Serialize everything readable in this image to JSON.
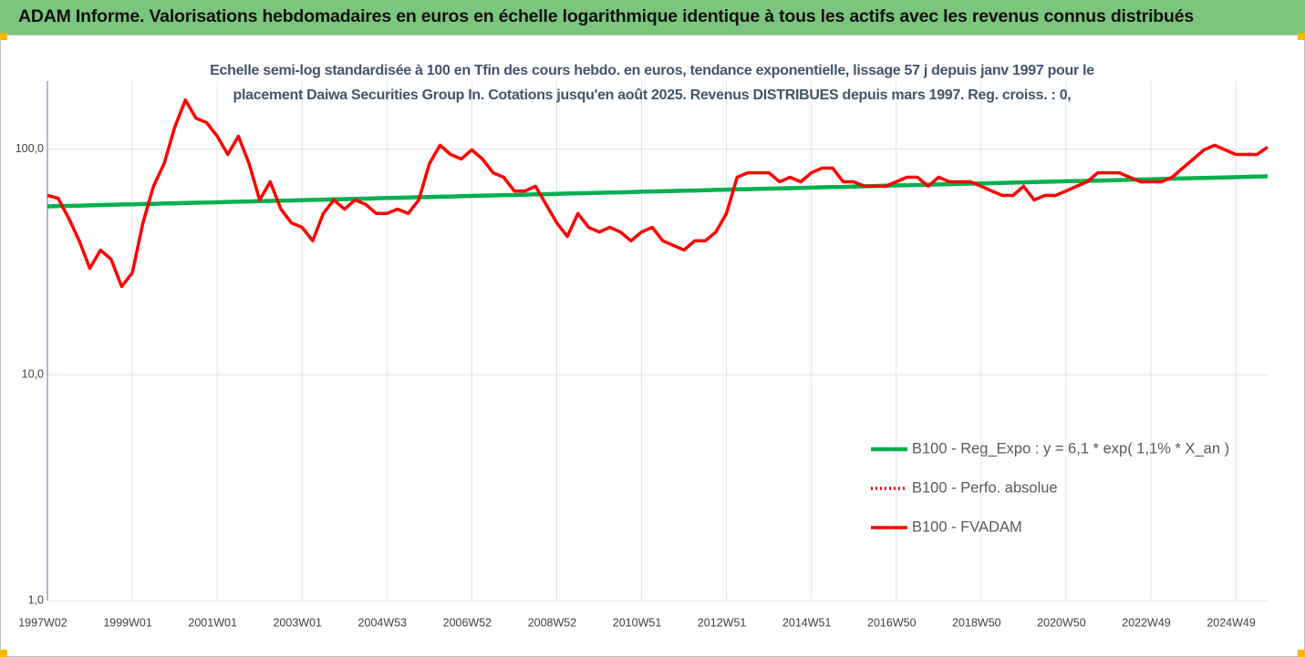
{
  "chart_data": {
    "type": "line",
    "title": "ADAM Informe. Valorisations hebdomadaires en euros en échelle logarithmique identique à tous les actifs avec les revenus connus distribués",
    "subtitle": "Echelle semi-log standardisée à 100 en Tfin des cours hebdo. en euros, tendance exponentielle, lissage 57 j depuis janv 1997 pour le placement Daiwa Securities Group In. Cotations jusqu'en août 2025. Revenus DISTRIBUES depuis mars 1997. Reg. croiss. : 0,",
    "log_scale": true,
    "grid": true,
    "legend": "right",
    "ylim": [
      1,
      200
    ],
    "yticks": [
      {
        "value": 1,
        "label": "1,0"
      },
      {
        "value": 10,
        "label": "10,0"
      },
      {
        "value": 100,
        "label": "100,0"
      }
    ],
    "categories": [
      "1997W02",
      null,
      null,
      null,
      null,
      null,
      null,
      null,
      "1999W01",
      null,
      null,
      null,
      null,
      null,
      null,
      null,
      "2001W01",
      null,
      null,
      null,
      null,
      null,
      null,
      null,
      "2003W01",
      null,
      null,
      null,
      null,
      null,
      null,
      null,
      "2004W53",
      null,
      null,
      null,
      null,
      null,
      null,
      null,
      "2006W52",
      null,
      null,
      null,
      null,
      null,
      null,
      null,
      "2008W52",
      null,
      null,
      null,
      null,
      null,
      null,
      null,
      "2010W51",
      null,
      null,
      null,
      null,
      null,
      null,
      null,
      "2012W51",
      null,
      null,
      null,
      null,
      null,
      null,
      null,
      "2014W51",
      null,
      null,
      null,
      null,
      null,
      null,
      null,
      "2016W50",
      null,
      null,
      null,
      null,
      null,
      null,
      null,
      "2018W50",
      null,
      null,
      null,
      null,
      null,
      null,
      null,
      "2020W50",
      null,
      null,
      null,
      null,
      null,
      null,
      null,
      "2022W49",
      null,
      null,
      null,
      null,
      null,
      null,
      null,
      "2024W49",
      null,
      null,
      null
    ],
    "series": [
      {
        "name": "B100 - Reg_Expo : y = 6,1 * exp( 1,1% *  X_an )",
        "color": "#00b050",
        "dash": "solid",
        "values": [
          55.7,
          55.9,
          56.0,
          56.1,
          56.3,
          56.5,
          56.6,
          56.8,
          56.9,
          57.1,
          57.2,
          57.4,
          57.5,
          57.7,
          57.8,
          58.0,
          58.1,
          58.3,
          58.4,
          58.6,
          58.8,
          58.9,
          59.1,
          59.2,
          59.4,
          59.5,
          59.7,
          59.9,
          60.0,
          60.2,
          60.3,
          60.5,
          60.7,
          60.8,
          61.0,
          61.2,
          61.3,
          61.5,
          61.6,
          61.8,
          62.0,
          62.1,
          62.3,
          62.5,
          62.6,
          62.8,
          63.0,
          63.1,
          63.3,
          63.5,
          63.7,
          63.8,
          64.0,
          64.2,
          64.3,
          64.5,
          64.7,
          64.9,
          65.0,
          65.2,
          65.4,
          65.5,
          65.7,
          65.9,
          66.1,
          66.3,
          66.4,
          66.6,
          66.8,
          67.0,
          67.1,
          67.3,
          67.5,
          67.7,
          67.9,
          68.0,
          68.2,
          68.4,
          68.6,
          68.8,
          69.0,
          69.1,
          69.3,
          69.5,
          69.7,
          69.9,
          70.1,
          70.3,
          70.4,
          70.6,
          70.8,
          71.0,
          71.2,
          71.4,
          71.6,
          71.8,
          72.0,
          72.1,
          72.3,
          72.5,
          72.7,
          72.9,
          73.1,
          73.3,
          73.5,
          73.7,
          73.9,
          74.1,
          74.3,
          74.5,
          74.7,
          74.9,
          75.1,
          75.3,
          75.5,
          75.7
        ]
      },
      {
        "name": "B100 - Perfo. absolue",
        "color": "#ff0000",
        "dash": "dotted",
        "values": [
          null,
          null,
          null,
          null,
          null,
          null,
          null,
          null,
          null,
          null,
          null,
          null,
          null,
          null,
          null,
          null,
          null,
          null,
          null,
          null,
          null,
          null,
          null,
          null,
          null,
          null,
          null,
          null,
          null,
          null,
          null,
          null,
          null,
          null,
          null,
          null,
          null,
          null,
          null,
          null,
          null,
          null,
          null,
          null,
          null,
          null,
          null,
          null,
          null,
          null,
          null,
          null,
          null,
          null,
          null,
          null,
          null,
          null,
          null,
          null,
          null,
          null,
          null,
          null,
          null,
          null,
          null,
          null,
          null,
          null,
          null,
          null,
          null,
          null,
          null,
          null,
          null,
          null,
          null,
          null,
          null,
          null,
          null,
          null,
          null,
          null,
          null,
          null,
          null,
          null,
          null,
          null,
          null,
          null,
          null,
          null,
          null,
          null,
          null,
          null,
          null,
          null,
          null,
          null,
          null,
          null,
          null,
          null,
          null,
          null,
          null,
          null,
          null,
          null,
          null,
          null
        ]
      },
      {
        "name": "B100 - FVADAM",
        "color": "#ff0000",
        "dash": "solid",
        "values": [
          62.3,
          60.6,
          49.4,
          39.2,
          29.6,
          35.7,
          32.5,
          24.6,
          28.3,
          47.1,
          68.4,
          86.2,
          125,
          165,
          137,
          131,
          114,
          94.6,
          114,
          86.2,
          59.5,
          71.6,
          54.2,
          47.1,
          45.0,
          39.2,
          51.8,
          59.5,
          54.2,
          59.5,
          56.8,
          51.8,
          51.8,
          54.2,
          51.8,
          59.5,
          86.2,
          104,
          94.6,
          90.3,
          99.1,
          90.3,
          78.5,
          75.0,
          65.2,
          65.2,
          68.4,
          56.8,
          47.1,
          41.0,
          51.8,
          45.0,
          42.9,
          45.0,
          42.9,
          39.2,
          42.9,
          45.0,
          39.2,
          37.4,
          35.7,
          39.2,
          39.2,
          42.9,
          51.8,
          75.0,
          78.5,
          78.5,
          78.5,
          71.6,
          75.0,
          71.6,
          78.5,
          82.3,
          82.3,
          71.6,
          71.6,
          68.4,
          68.4,
          68.4,
          71.6,
          75.0,
          75.0,
          68.4,
          75.0,
          71.6,
          71.6,
          71.6,
          68.4,
          65.2,
          62.3,
          62.3,
          68.4,
          59.5,
          62.3,
          62.3,
          65.2,
          68.4,
          71.6,
          78.5,
          78.5,
          78.5,
          75.0,
          71.6,
          71.6,
          71.6,
          75.0,
          82.3,
          90.3,
          99.1,
          104,
          99.1,
          94.6,
          94.6,
          94.6,
          102
        ]
      }
    ]
  }
}
